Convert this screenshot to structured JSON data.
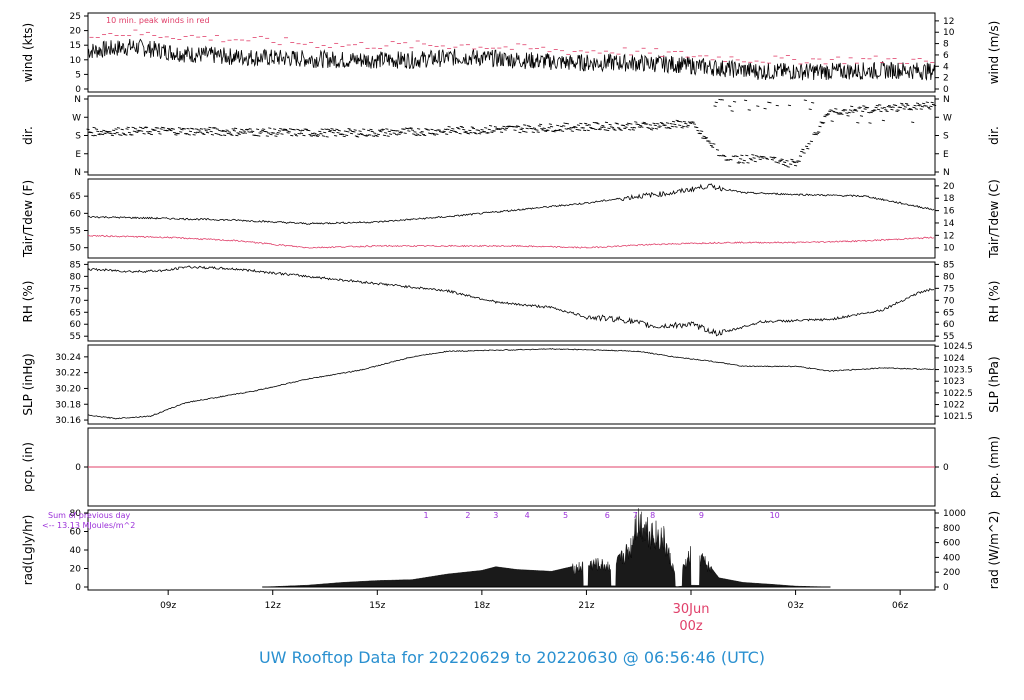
{
  "title": "UW Rooftop Data for 20220629  to  20220630 @ 06:56:46  (UTC)",
  "colors": {
    "title": "#2a90d0",
    "red": "#e0406a",
    "purple": "#9b30d9",
    "ink": "#000000"
  },
  "chart_data": [
    {
      "type": "line",
      "ylabel": "wind (kts)",
      "ylabel_right": "wind (m/s)",
      "annotation": "10 min. peak winds in red",
      "ylim": [
        0,
        25
      ],
      "yticks": [
        0,
        5,
        10,
        15,
        20,
        25
      ],
      "yticks_right": [
        0,
        2,
        4,
        6,
        8,
        10,
        12
      ],
      "series": [
        {
          "name": "",
          "points": [
            [
              6.7,
              13
            ],
            [
              8,
              14.5
            ],
            [
              9.5,
              12
            ],
            [
              11,
              11
            ],
            [
              12.5,
              10.5
            ],
            [
              14,
              10
            ],
            [
              16,
              10
            ],
            [
              17.5,
              11
            ],
            [
              19,
              10
            ],
            [
              20.5,
              9
            ],
            [
              22,
              9
            ],
            [
              23.5,
              8.5
            ],
            [
              24.5,
              7.5
            ],
            [
              26,
              6
            ],
            [
              28,
              6
            ],
            [
              30,
              6.5
            ],
            [
              31,
              6
            ]
          ]
        },
        {
          "name": "",
          "points": [
            [
              6.7,
              19
            ],
            [
              8,
              19
            ],
            [
              9.5,
              18
            ],
            [
              11,
              17
            ],
            [
              12.5,
              16
            ],
            [
              14,
              15
            ],
            [
              16,
              15
            ],
            [
              17.5,
              15
            ],
            [
              19,
              14
            ],
            [
              20.5,
              13
            ],
            [
              22,
              13
            ],
            [
              23.5,
              12
            ],
            [
              24.5,
              11
            ],
            [
              26,
              10
            ],
            [
              28,
              10
            ],
            [
              30,
              10
            ],
            [
              31,
              9
            ]
          ]
        }
      ]
    },
    {
      "type": "scatter",
      "ylabel": "dir.",
      "ylabel_right": "dir.",
      "yticks": [
        "N",
        "E",
        "S",
        "W",
        "N"
      ],
      "series": [
        {
          "name": "",
          "points": [
            [
              6.7,
              200
            ],
            [
              9,
              205
            ],
            [
              11,
              200
            ],
            [
              13,
              195
            ],
            [
              15,
              195
            ],
            [
              17,
              205
            ],
            [
              19,
              215
            ],
            [
              21,
              225
            ],
            [
              23,
              230
            ],
            [
              24,
              240
            ],
            [
              25,
              60
            ],
            [
              26,
              70
            ],
            [
              27,
              40
            ],
            [
              28,
              300
            ],
            [
              29,
              310
            ],
            [
              30,
              320
            ],
            [
              31,
              330
            ]
          ]
        }
      ]
    },
    {
      "type": "line",
      "ylabel": "Tair/Tdew (F)",
      "ylabel_right": "Tair/Tdew (C)",
      "ylim": [
        47,
        70
      ],
      "yticks": [
        50,
        55,
        60,
        65
      ],
      "yticks_right": [
        10,
        12,
        14,
        16,
        18,
        20
      ],
      "series": [
        {
          "name": "",
          "points": [
            [
              6.7,
              59
            ],
            [
              9,
              58.5
            ],
            [
              11,
              58
            ],
            [
              13,
              57
            ],
            [
              15,
              57.5
            ],
            [
              17,
              59
            ],
            [
              19,
              61
            ],
            [
              21,
              63
            ],
            [
              22.5,
              65
            ],
            [
              23.5,
              66
            ],
            [
              24.5,
              68
            ],
            [
              25.5,
              66
            ],
            [
              27,
              65.5
            ],
            [
              29,
              65
            ],
            [
              31,
              61
            ]
          ]
        },
        {
          "name": "",
          "points": [
            [
              6.7,
              53.5
            ],
            [
              9,
              53
            ],
            [
              11,
              52
            ],
            [
              13,
              50
            ],
            [
              15,
              50.5
            ],
            [
              17,
              50.5
            ],
            [
              19,
              50.5
            ],
            [
              21,
              50
            ],
            [
              23,
              51
            ],
            [
              25,
              51.5
            ],
            [
              27,
              51.5
            ],
            [
              29,
              52
            ],
            [
              31,
              53
            ]
          ]
        }
      ]
    },
    {
      "type": "line",
      "ylabel": "RH (%)",
      "ylabel_right": "RH (%)",
      "ylim": [
        53,
        86
      ],
      "yticks": [
        55,
        60,
        65,
        70,
        75,
        80,
        85
      ],
      "yticks_right": [
        55,
        60,
        65,
        70,
        75,
        80,
        85
      ],
      "series": [
        {
          "name": "",
          "points": [
            [
              6.7,
              83
            ],
            [
              8,
              82
            ],
            [
              9,
              82.5
            ],
            [
              9.5,
              84
            ],
            [
              11,
              83
            ],
            [
              13,
              80
            ],
            [
              15,
              77
            ],
            [
              17,
              74
            ],
            [
              18.5,
              69
            ],
            [
              20,
              67
            ],
            [
              21,
              63
            ],
            [
              22,
              62
            ],
            [
              23,
              59
            ],
            [
              24,
              60
            ],
            [
              24.8,
              56
            ],
            [
              26,
              61
            ],
            [
              28,
              62
            ],
            [
              29.5,
              66
            ],
            [
              30.5,
              73
            ],
            [
              31,
              75
            ]
          ]
        }
      ]
    },
    {
      "type": "line",
      "ylabel": "SLP (inHg)",
      "ylabel_right": "SLP (hPa)",
      "ylim": [
        30.155,
        30.255
      ],
      "yticks": [
        30.16,
        30.18,
        30.2,
        30.22,
        30.24
      ],
      "yticks_right": [
        1021.5,
        1022,
        1022.5,
        1023,
        1023.5,
        1024,
        1024.5
      ],
      "series": [
        {
          "name": "",
          "points": [
            [
              6.7,
              30.166
            ],
            [
              7.5,
              30.162
            ],
            [
              8.5,
              30.165
            ],
            [
              9.5,
              30.182
            ],
            [
              11.5,
              30.197
            ],
            [
              13,
              30.212
            ],
            [
              14.5,
              30.223
            ],
            [
              16,
              30.24
            ],
            [
              17,
              30.247
            ],
            [
              18,
              30.248
            ],
            [
              20,
              30.25
            ],
            [
              21,
              30.249
            ],
            [
              22.5,
              30.247
            ],
            [
              23.5,
              30.24
            ],
            [
              24.5,
              30.235
            ],
            [
              25.5,
              30.228
            ],
            [
              27,
              30.228
            ],
            [
              28,
              30.222
            ],
            [
              29.5,
              30.226
            ],
            [
              31,
              30.224
            ]
          ]
        }
      ]
    },
    {
      "type": "line",
      "ylabel": "pcp. (in)",
      "ylabel_right": "pcp. (mm)",
      "yticks": [
        0
      ],
      "yticks_right": [
        0
      ],
      "series": [
        {
          "name": "",
          "points": [
            [
              6.7,
              0
            ],
            [
              31,
              0
            ]
          ]
        }
      ]
    },
    {
      "type": "area",
      "ylabel": "rad(Lgly/hr)",
      "ylabel_right": "rad (W/m^2)",
      "annotation_lines": [
        "Sum of previous day",
        "<-- 13.13 MJoules/m^2"
      ],
      "ylim": [
        0,
        80
      ],
      "yticks": [
        0,
        20,
        40,
        60,
        80
      ],
      "yticks_right": [
        0,
        200,
        400,
        600,
        800,
        1000
      ],
      "uv_labels": [
        {
          "label": "1",
          "x": 16.4
        },
        {
          "label": "2",
          "x": 17.6
        },
        {
          "label": "3",
          "x": 18.4
        },
        {
          "label": "4",
          "x": 19.3
        },
        {
          "label": "5",
          "x": 20.4
        },
        {
          "label": "6",
          "x": 21.6
        },
        {
          "label": "7",
          "x": 22.4
        },
        {
          "label": "8",
          "x": 22.9
        },
        {
          "label": "9",
          "x": 24.3
        },
        {
          "label": "10",
          "x": 26.4
        }
      ],
      "series": [
        {
          "name": "",
          "points": [
            [
              11.7,
              0
            ],
            [
              13,
              2
            ],
            [
              14,
              5
            ],
            [
              15,
              7
            ],
            [
              16,
              8
            ],
            [
              17,
              14
            ],
            [
              18,
              18
            ],
            [
              18.4,
              22
            ],
            [
              19,
              19
            ],
            [
              20,
              17
            ],
            [
              20.8,
              24
            ],
            [
              21.2,
              28
            ],
            [
              21.8,
              25
            ],
            [
              22,
              35
            ],
            [
              22.3,
              50
            ],
            [
              22.4,
              80
            ],
            [
              22.6,
              78
            ],
            [
              22.9,
              65
            ],
            [
              23.2,
              60
            ],
            [
              23.6,
              8
            ],
            [
              24,
              40
            ],
            [
              24.3,
              35
            ],
            [
              24.8,
              10
            ],
            [
              25.5,
              5
            ],
            [
              26.3,
              3
            ],
            [
              27,
              1
            ],
            [
              28,
              0
            ]
          ]
        }
      ]
    }
  ],
  "x_axis": {
    "ticks": [
      {
        "label": "09z",
        "x": 9
      },
      {
        "label": "12z",
        "x": 12
      },
      {
        "label": "15z",
        "x": 15
      },
      {
        "label": "18z",
        "x": 18
      },
      {
        "label": "21z",
        "x": 21
      },
      {
        "label": "30Jun",
        "x": 24
      },
      {
        "label": "03z",
        "x": 27
      },
      {
        "label": "06z",
        "x": 30
      }
    ],
    "midnight_sublabel": "00z",
    "xlim": [
      6.7,
      31
    ]
  }
}
